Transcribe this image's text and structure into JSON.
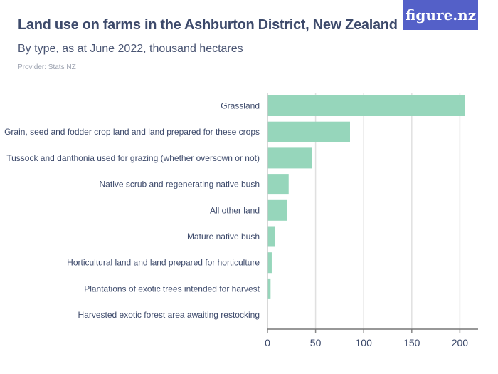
{
  "header": {
    "title": "Land use on farms in the Ashburton District, New Zealand",
    "subtitle": "By type, as at June 2022, thousand hectares",
    "provider": "Provider: Stats NZ",
    "logo": "figure.nz"
  },
  "chart_data": {
    "type": "bar",
    "orientation": "horizontal",
    "title": "Land use on farms in the Ashburton District, New Zealand",
    "categories": [
      "Grassland",
      "Grain, seed and fodder crop land and land prepared for these crops",
      "Tussock and danthonia used for grazing (whether oversown or not)",
      "Native scrub and regenerating native bush",
      "All other land",
      "Mature native bush",
      "Horticultural land and land prepared for horticulture",
      "Plantations of exotic trees intended for harvest",
      "Harvested exotic forest area awaiting restocking"
    ],
    "values": [
      205.5,
      85.8,
      46.5,
      22,
      20,
      7.4,
      4.4,
      3.2,
      0.3
    ],
    "xlim": [
      0,
      220
    ],
    "ticks": [
      0,
      50,
      100,
      150,
      200
    ],
    "xlabel": "",
    "ylabel": "",
    "grid": true,
    "bar_color": "#96d6bb",
    "grid_color": "#e0e0e0"
  }
}
